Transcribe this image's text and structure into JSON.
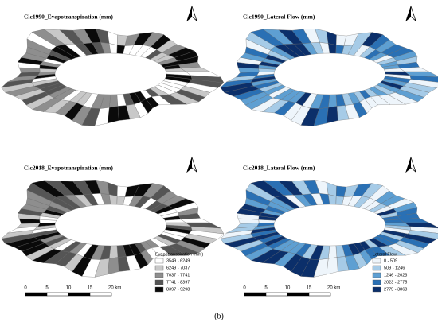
{
  "maps": [
    {
      "title": "Clc1990_Evapotranspiration (mm)"
    },
    {
      "title": "Clc1990_Lateral Flow (mm)"
    },
    {
      "title": "Clc2018_Evapotranspiration (mm)"
    },
    {
      "title": "Clc2018_Lateral Flow (mm)"
    }
  ],
  "legends": [
    {
      "title": "Evapotranspiration (mm)",
      "items": [
        {
          "label": "3549 - 6249",
          "color": "#ffffff"
        },
        {
          "label": "6249 - 7037",
          "color": "#c8c8c8"
        },
        {
          "label": "7037 - 7741",
          "color": "#8e8e8e"
        },
        {
          "label": "7741 - 8397",
          "color": "#555555"
        },
        {
          "label": "8397 - 9298",
          "color": "#0a0a0a"
        }
      ]
    },
    {
      "title": "Lateral Flow",
      "items": [
        {
          "label": "0 - 509",
          "color": "#eef5fb"
        },
        {
          "label": "509 - 1246",
          "color": "#a6cbe7"
        },
        {
          "label": "1246 - 2023",
          "color": "#5e9fd2"
        },
        {
          "label": "2023 - 2775",
          "color": "#2a70b4"
        },
        {
          "label": "2775 - 3868",
          "color": "#0b2f6a"
        }
      ]
    }
  ],
  "scale_bar": {
    "labels": [
      "0",
      "5",
      "10",
      "15",
      "20 km"
    ]
  },
  "caption": "(b)"
}
